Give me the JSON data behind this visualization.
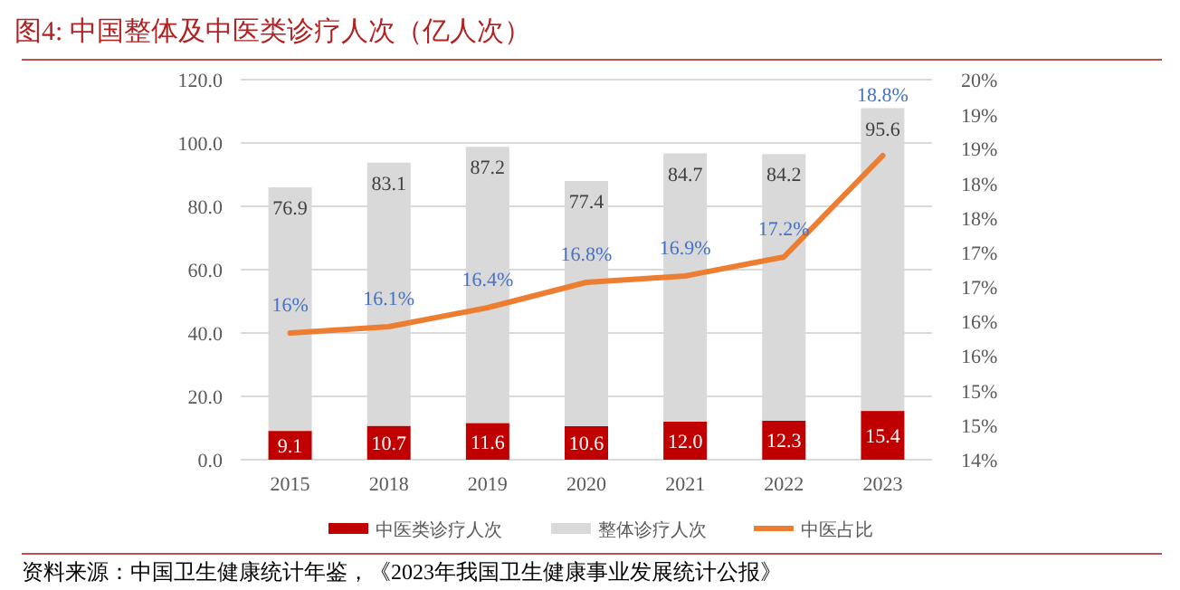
{
  "chart_data": {
    "type": "bar",
    "title": "图4:   中国整体及中医类诊疗人次（亿人次）",
    "categories": [
      "2015",
      "2018",
      "2019",
      "2020",
      "2021",
      "2022",
      "2023"
    ],
    "stacked": true,
    "series": [
      {
        "name": "中医类诊疗人次",
        "color": "#c00000",
        "values": [
          9.1,
          10.7,
          11.6,
          10.6,
          12.0,
          12.3,
          15.4
        ],
        "value_labels": [
          "9.1",
          "10.7",
          "11.6",
          "10.6",
          "12.0",
          "12.3",
          "15.4"
        ]
      },
      {
        "name": "整体诊疗人次",
        "color": "#d9d9d9",
        "values": [
          76.9,
          83.1,
          87.2,
          77.4,
          84.7,
          84.2,
          95.6
        ],
        "value_labels": [
          "76.9",
          "83.1",
          "87.2",
          "77.4",
          "84.7",
          "84.2",
          "95.6"
        ]
      },
      {
        "name": "中医占比",
        "type": "line",
        "axis": "y2",
        "color": "#ed7d31",
        "values": [
          16,
          16.1,
          16.4,
          16.8,
          16.9,
          17.2,
          18.8
        ],
        "value_labels": [
          "16%",
          "16.1%",
          "16.4%",
          "16.8%",
          "16.9%",
          "17.2%",
          "18.8%"
        ]
      }
    ],
    "ylim": [
      0,
      120
    ],
    "yticks": [
      {
        "value": 0,
        "label": "0.0"
      },
      {
        "value": 20,
        "label": "20.0"
      },
      {
        "value": 40,
        "label": "40.0"
      },
      {
        "value": 60,
        "label": "60.0"
      },
      {
        "value": 80,
        "label": "80.0"
      },
      {
        "value": 100,
        "label": "100.0"
      },
      {
        "value": 120,
        "label": "120.0"
      }
    ],
    "y2lim": [
      14,
      20
    ],
    "y2ticks": [
      {
        "value": 14,
        "label": "14%"
      },
      {
        "value": 14.55,
        "label": "15%"
      },
      {
        "value": 15.09,
        "label": "15%"
      },
      {
        "value": 15.64,
        "label": "16%"
      },
      {
        "value": 16.18,
        "label": "16%"
      },
      {
        "value": 16.73,
        "label": "17%"
      },
      {
        "value": 17.27,
        "label": "17%"
      },
      {
        "value": 17.82,
        "label": "18%"
      },
      {
        "value": 18.36,
        "label": "18%"
      },
      {
        "value": 18.91,
        "label": "19%"
      },
      {
        "value": 19.45,
        "label": "19%"
      },
      {
        "value": 20,
        "label": "20%"
      }
    ],
    "grid": "y",
    "legend": "bottom",
    "marker": "none",
    "annotations": [
      "资料来源：中国卫生健康统计年鉴，《2023年我国卫生健康事业发展统计公报》"
    ]
  }
}
